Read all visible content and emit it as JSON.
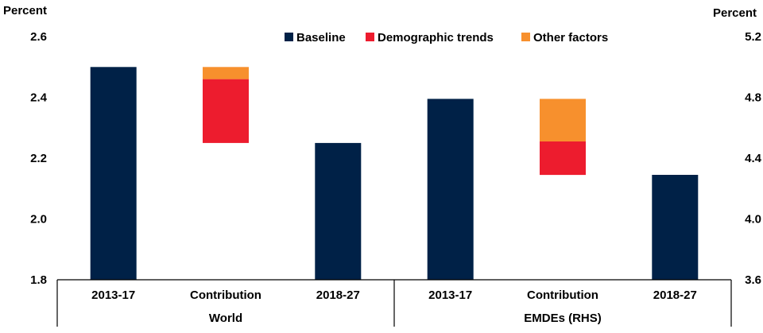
{
  "chart_data": {
    "type": "bar",
    "subtype": "stacked-waterfall",
    "left_axis": {
      "label": "Percent",
      "ylim": [
        1.8,
        2.6
      ],
      "ticks": [
        "1.8",
        "2.0",
        "2.2",
        "2.4",
        "2.6"
      ]
    },
    "right_axis": {
      "label": "Percent",
      "ylim": [
        3.6,
        5.2
      ],
      "ticks": [
        "3.6",
        "4.0",
        "4.4",
        "4.8",
        "5.2"
      ]
    },
    "legend": [
      {
        "name": "Baseline",
        "color": "#002147"
      },
      {
        "name": "Demographic trends",
        "color": "#ED1C2E"
      },
      {
        "name": "Other factors",
        "color": "#F7902D"
      }
    ],
    "groups": [
      {
        "name": "World",
        "axis": "left",
        "categories": [
          {
            "label": "2013-17",
            "segments": [
              {
                "series": "Baseline",
                "from": 1.8,
                "to": 2.5
              }
            ]
          },
          {
            "label": "Contribution",
            "segments": [
              {
                "series": "Demographic trends",
                "from": 2.25,
                "to": 2.46
              },
              {
                "series": "Other factors",
                "from": 2.46,
                "to": 2.5
              }
            ]
          },
          {
            "label": "2018-27",
            "segments": [
              {
                "series": "Baseline",
                "from": 1.8,
                "to": 2.25
              }
            ]
          }
        ]
      },
      {
        "name": "EMDEs (RHS)",
        "axis": "right",
        "categories": [
          {
            "label": "2013-17",
            "segments": [
              {
                "series": "Baseline",
                "from": 3.6,
                "to": 4.79
              }
            ]
          },
          {
            "label": "Contribution",
            "segments": [
              {
                "series": "Demographic trends",
                "from": 4.29,
                "to": 4.51
              },
              {
                "series": "Other factors",
                "from": 4.51,
                "to": 4.79
              }
            ]
          },
          {
            "label": "2018-27",
            "segments": [
              {
                "series": "Baseline",
                "from": 3.6,
                "to": 4.29
              }
            ]
          }
        ]
      }
    ]
  }
}
